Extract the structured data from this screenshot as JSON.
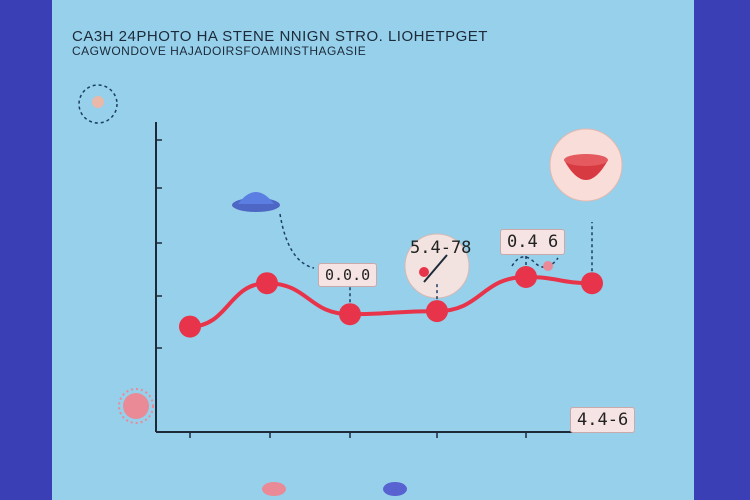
{
  "chart_data": {
    "type": "line",
    "title": "CA3H 24PHOTO HA STENE NNIGN STRO. LIOHETPGET",
    "subtitle": "CAGWONDOVE HAJADOIRSFOAMINSTHAGASIE",
    "xlabel": "",
    "ylabel": "",
    "x": [
      "",
      "",
      "",
      "",
      "",
      ""
    ],
    "series": [
      {
        "name": "",
        "values": [
          0.34,
          0.48,
          0.38,
          0.39,
          0.5,
          0.48
        ]
      }
    ],
    "ylim": [
      0,
      1
    ],
    "grid": false,
    "callouts": [
      "0.0.0",
      "5.4-78",
      "0.4 6",
      "4.4-6"
    ],
    "colors": {
      "line": "#e8344a",
      "legend_a": "#e98a96",
      "legend_b": "#5862d0"
    }
  }
}
